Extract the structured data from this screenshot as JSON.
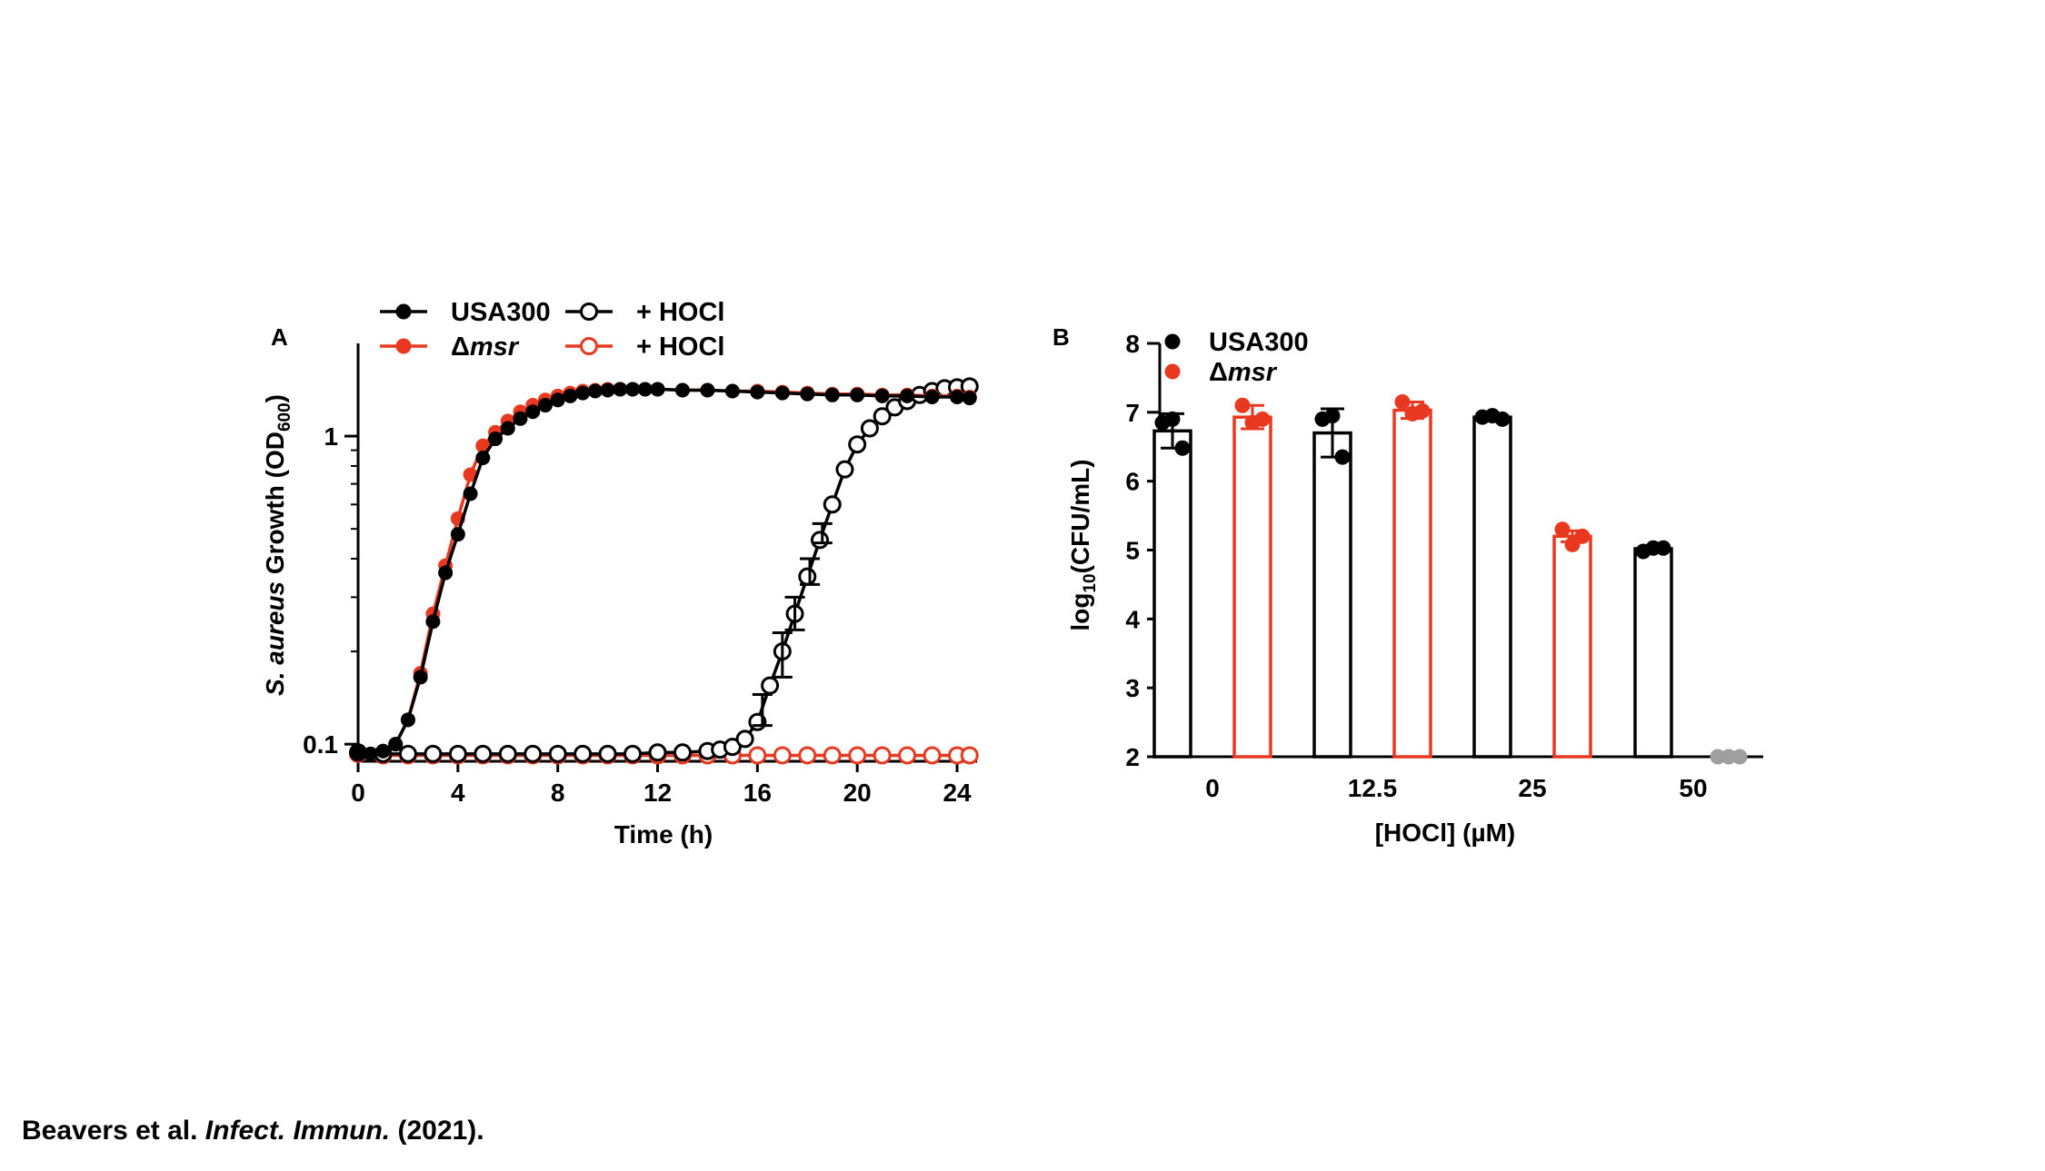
{
  "colors": {
    "usa300": "#000000",
    "msr": "#E8381F",
    "below_limit": "#9E9E9E"
  },
  "chart_data": [
    {
      "panel": "A",
      "type": "line",
      "ylabel": {
        "italic": "S. aureus",
        "text": " Growth (OD",
        "sub": "600",
        "close": ")"
      },
      "xlabel": "Time (h)",
      "x_ticks": [
        0,
        4,
        8,
        12,
        16,
        20,
        24
      ],
      "y_ticks": [
        0.1,
        1
      ],
      "y_tick_labels": [
        "0.1",
        "1"
      ],
      "xlim": [
        0,
        24.8
      ],
      "ylim": [
        0.088,
        2.0
      ],
      "yscale": "log",
      "legend": [
        {
          "label": "USA300",
          "italic": false,
          "marker": "filled",
          "color_key": "usa300"
        },
        {
          "label": "Δ",
          "italic_part": "msr",
          "marker": "filled",
          "color_key": "msr"
        },
        {
          "label": "+ HOCl",
          "marker": "open",
          "color_key": "usa300"
        },
        {
          "label": "+ HOCl",
          "marker": "open",
          "color_key": "msr"
        }
      ],
      "series": [
        {
          "name": "USA300",
          "color_key": "usa300",
          "marker": "filled",
          "points": [
            [
              0,
              0.094
            ],
            [
              0.5,
              0.093
            ],
            [
              1,
              0.095
            ],
            [
              1.5,
              0.1
            ],
            [
              2,
              0.12
            ],
            [
              2.5,
              0.165
            ],
            [
              3,
              0.25
            ],
            [
              3.5,
              0.36
            ],
            [
              4,
              0.48
            ],
            [
              4.5,
              0.65
            ],
            [
              5,
              0.85
            ],
            [
              5.5,
              0.98
            ],
            [
              6,
              1.06
            ],
            [
              6.5,
              1.14
            ],
            [
              7,
              1.2
            ],
            [
              7.5,
              1.26
            ],
            [
              8,
              1.31
            ],
            [
              8.5,
              1.35
            ],
            [
              9,
              1.38
            ],
            [
              9.5,
              1.4
            ],
            [
              10,
              1.41
            ],
            [
              10.5,
              1.42
            ],
            [
              11,
              1.42
            ],
            [
              11.5,
              1.42
            ],
            [
              12,
              1.42
            ],
            [
              13,
              1.41
            ],
            [
              14,
              1.41
            ],
            [
              15,
              1.4
            ],
            [
              16,
              1.39
            ],
            [
              17,
              1.38
            ],
            [
              18,
              1.37
            ],
            [
              19,
              1.36
            ],
            [
              20,
              1.36
            ],
            [
              21,
              1.35
            ],
            [
              22,
              1.35
            ],
            [
              23,
              1.34
            ],
            [
              24,
              1.34
            ],
            [
              24.5,
              1.33
            ]
          ]
        },
        {
          "name": "Δmsr",
          "color_key": "msr",
          "marker": "filled",
          "points": [
            [
              0,
              0.094
            ],
            [
              0.5,
              0.093
            ],
            [
              1,
              0.095
            ],
            [
              1.5,
              0.1
            ],
            [
              2,
              0.12
            ],
            [
              2.5,
              0.17
            ],
            [
              3,
              0.265
            ],
            [
              3.5,
              0.38
            ],
            [
              4,
              0.54
            ],
            [
              4.5,
              0.75
            ],
            [
              5,
              0.93
            ],
            [
              5.5,
              1.03
            ],
            [
              6,
              1.12
            ],
            [
              6.5,
              1.2
            ],
            [
              7,
              1.26
            ],
            [
              7.5,
              1.31
            ],
            [
              8,
              1.35
            ],
            [
              8.5,
              1.38
            ],
            [
              9,
              1.4
            ],
            [
              9.5,
              1.41
            ],
            [
              10,
              1.42
            ],
            [
              10.5,
              1.42
            ],
            [
              11,
              1.42
            ],
            [
              11.5,
              1.42
            ],
            [
              12,
              1.42
            ],
            [
              13,
              1.41
            ],
            [
              14,
              1.41
            ],
            [
              15,
              1.4
            ],
            [
              16,
              1.4
            ],
            [
              17,
              1.39
            ],
            [
              18,
              1.38
            ],
            [
              19,
              1.37
            ],
            [
              20,
              1.37
            ],
            [
              21,
              1.36
            ],
            [
              22,
              1.36
            ],
            [
              23,
              1.35
            ],
            [
              24,
              1.35
            ],
            [
              24.5,
              1.34
            ]
          ]
        },
        {
          "name": "USA300 + HOCl",
          "color_key": "usa300",
          "marker": "open",
          "points": [
            [
              0,
              0.094
            ],
            [
              1,
              0.093
            ],
            [
              2,
              0.093
            ],
            [
              3,
              0.093
            ],
            [
              4,
              0.093
            ],
            [
              5,
              0.093
            ],
            [
              6,
              0.093
            ],
            [
              7,
              0.093
            ],
            [
              8,
              0.093
            ],
            [
              9,
              0.093
            ],
            [
              10,
              0.093
            ],
            [
              11,
              0.093
            ],
            [
              12,
              0.094
            ],
            [
              13,
              0.094
            ],
            [
              14,
              0.095
            ],
            [
              14.5,
              0.096
            ],
            [
              15,
              0.098
            ],
            [
              15.5,
              0.104
            ],
            [
              16,
              0.118
            ],
            [
              16.5,
              0.155
            ],
            [
              17,
              0.2
            ],
            [
              17.5,
              0.265
            ],
            [
              18,
              0.35
            ],
            [
              18.5,
              0.46
            ],
            [
              19,
              0.6
            ],
            [
              19.5,
              0.78
            ],
            [
              20,
              0.94
            ],
            [
              20.5,
              1.06
            ],
            [
              21,
              1.16
            ],
            [
              21.5,
              1.24
            ],
            [
              22,
              1.3
            ],
            [
              22.5,
              1.36
            ],
            [
              23,
              1.4
            ],
            [
              23.5,
              1.43
            ],
            [
              24,
              1.44
            ],
            [
              24.5,
              1.45
            ]
          ]
        },
        {
          "name": "Δmsr + HOCl",
          "color_key": "msr",
          "marker": "open",
          "points": [
            [
              0,
              0.093
            ],
            [
              1,
              0.092
            ],
            [
              2,
              0.092
            ],
            [
              3,
              0.092
            ],
            [
              4,
              0.092
            ],
            [
              5,
              0.092
            ],
            [
              6,
              0.092
            ],
            [
              7,
              0.092
            ],
            [
              8,
              0.092
            ],
            [
              9,
              0.092
            ],
            [
              10,
              0.092
            ],
            [
              11,
              0.092
            ],
            [
              12,
              0.092
            ],
            [
              13,
              0.092
            ],
            [
              14,
              0.092
            ],
            [
              15,
              0.092
            ],
            [
              16,
              0.092
            ],
            [
              17,
              0.092
            ],
            [
              18,
              0.092
            ],
            [
              19,
              0.092
            ],
            [
              20,
              0.092
            ],
            [
              21,
              0.092
            ],
            [
              22,
              0.092
            ],
            [
              23,
              0.092
            ],
            [
              24,
              0.092
            ],
            [
              24.5,
              0.092
            ]
          ]
        }
      ],
      "error_bars": [
        {
          "series": "USA300 + HOCl",
          "x": 16.2,
          "low": 0.115,
          "high": 0.145
        },
        {
          "series": "USA300 + HOCl",
          "x": 17,
          "low": 0.165,
          "high": 0.23
        },
        {
          "series": "USA300 + HOCl",
          "x": 17.5,
          "low": 0.235,
          "high": 0.3
        },
        {
          "series": "USA300 + HOCl",
          "x": 18.1,
          "low": 0.33,
          "high": 0.4
        },
        {
          "series": "USA300 + HOCl",
          "x": 18.6,
          "low": 0.45,
          "high": 0.52
        }
      ]
    },
    {
      "panel": "B",
      "type": "bar",
      "ylabel": {
        "pre": "log",
        "sub": "10",
        "post": "(CFU/mL)"
      },
      "xlabel": "[HOCl] (µM)",
      "categories": [
        "0",
        "12.5",
        "25",
        "50"
      ],
      "y_ticks": [
        2,
        3,
        4,
        5,
        6,
        7,
        8
      ],
      "ylim": [
        2,
        8
      ],
      "legend": [
        {
          "label": "USA300",
          "color_key": "usa300"
        },
        {
          "label": "Δ",
          "italic_part": "msr",
          "color_key": "msr"
        }
      ],
      "series": [
        {
          "name": "USA300",
          "color_key": "usa300",
          "means": [
            6.73,
            6.7,
            6.93,
            5.02
          ],
          "sd": [
            0.25,
            0.35,
            0.05,
            0.04
          ],
          "points": [
            [
              6.85,
              6.9,
              6.48
            ],
            [
              6.9,
              6.95,
              6.35
            ],
            [
              6.93,
              6.95,
              6.9
            ],
            [
              4.98,
              5.03,
              5.03
            ]
          ]
        },
        {
          "name": "Δmsr",
          "color_key": "msr",
          "means": [
            6.93,
            7.03,
            5.2,
            null
          ],
          "sd": [
            0.17,
            0.12,
            0.08,
            null
          ],
          "points": [
            [
              7.1,
              6.85,
              6.9
            ],
            [
              7.15,
              6.98,
              7.02
            ],
            [
              5.3,
              5.08,
              5.2
            ],
            [
              2.0,
              2.0,
              2.0
            ]
          ]
        }
      ]
    }
  ],
  "citation": {
    "authors": "Beavers et al. ",
    "journal": "Infect. Immun.",
    "year": " (2021)."
  }
}
